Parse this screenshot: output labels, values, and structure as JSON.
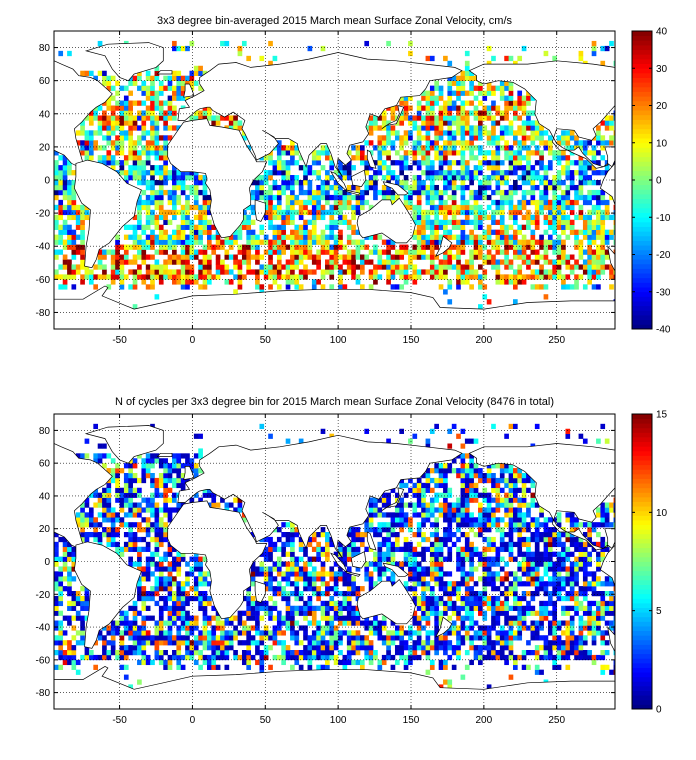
{
  "chart_data": [
    {
      "type": "heatmap",
      "title": "3x3 degree bin-averaged 2015 March mean Surface Zonal Velocity, cm/s",
      "xlim": [
        -95,
        290
      ],
      "ylim": [
        -90,
        90
      ],
      "xticks": [
        -50,
        0,
        50,
        100,
        150,
        200,
        250
      ],
      "yticks": [
        80,
        60,
        40,
        20,
        0,
        -20,
        -40,
        -60,
        -80
      ],
      "grid": true,
      "bin_size_deg": 3,
      "colormap": "jet",
      "colorbar": {
        "min": -40,
        "max": 40,
        "ticks": [
          40,
          30,
          20,
          10,
          0,
          -10,
          -20,
          -30,
          -40
        ]
      }
    },
    {
      "type": "heatmap",
      "title": "N of cycles per 3x3 degree bin for 2015 March mean Surface Zonal Velocity (8476 in total)",
      "xlim": [
        -95,
        290
      ],
      "ylim": [
        -90,
        90
      ],
      "xticks": [
        -50,
        0,
        50,
        100,
        150,
        200,
        250
      ],
      "yticks": [
        80,
        60,
        40,
        20,
        0,
        -20,
        -40,
        -60,
        -80
      ],
      "grid": true,
      "bin_size_deg": 3,
      "colormap": "jet",
      "colorbar": {
        "min": 0,
        "max": 15,
        "ticks": [
          15,
          10,
          5,
          0
        ]
      }
    }
  ]
}
